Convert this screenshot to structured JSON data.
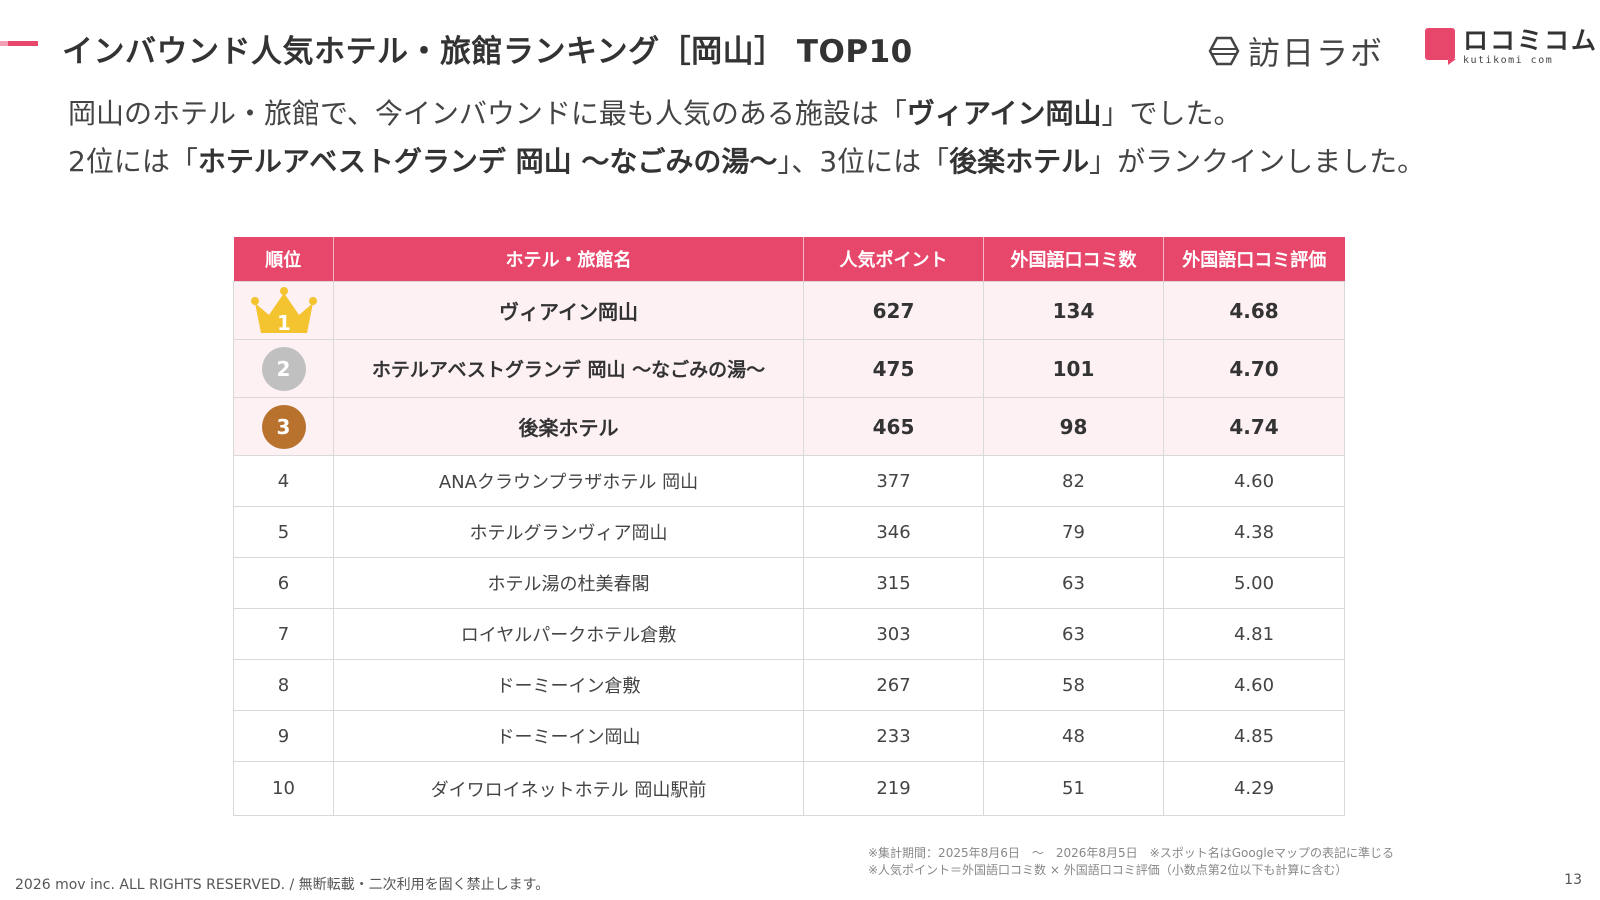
{
  "title": "インバウンド人気ホテル・旅館ランキング［岡山］ TOP10",
  "logos": {
    "houni_labo": "訪日ラボ",
    "kuchikomi": "ロコミコム",
    "kuchikomi_sub": "kutikomi com"
  },
  "intro": {
    "line1_prefix": "岡山のホテル・旅館で、今インバウンドに最も人気のある施設は「",
    "line1_bold": "ヴィアイン岡山",
    "line1_suffix": "」でした。",
    "line2_prefix": "2位には「",
    "line2_bold1": "ホテルアベストグランデ 岡山 ～なごみの湯～",
    "line2_mid": "」、3位には「",
    "line2_bold2": "後楽ホテル",
    "line2_suffix": "」がランクインしました。"
  },
  "table": {
    "headers": [
      "順位",
      "ホテル・旅館名",
      "人気ポイント",
      "外国語口コミ数",
      "外国語口コミ評価"
    ],
    "rows": [
      {
        "rank": "1",
        "name": "ヴィアイン岡山",
        "points": "627",
        "reviews": "134",
        "rating": "4.68"
      },
      {
        "rank": "2",
        "name": "ホテルアベストグランデ 岡山 ～なごみの湯～",
        "points": "475",
        "reviews": "101",
        "rating": "4.70"
      },
      {
        "rank": "3",
        "name": "後楽ホテル",
        "points": "465",
        "reviews": "98",
        "rating": "4.74"
      },
      {
        "rank": "4",
        "name": "ANAクラウンプラザホテル 岡山",
        "points": "377",
        "reviews": "82",
        "rating": "4.60"
      },
      {
        "rank": "5",
        "name": "ホテルグランヴィア岡山",
        "points": "346",
        "reviews": "79",
        "rating": "4.38"
      },
      {
        "rank": "6",
        "name": "ホテル湯の杜美春閣",
        "points": "315",
        "reviews": "63",
        "rating": "5.00"
      },
      {
        "rank": "7",
        "name": "ロイヤルパークホテル倉敷",
        "points": "303",
        "reviews": "63",
        "rating": "4.81"
      },
      {
        "rank": "8",
        "name": "ドーミーイン倉敷",
        "points": "267",
        "reviews": "58",
        "rating": "4.60"
      },
      {
        "rank": "9",
        "name": "ドーミーイン岡山",
        "points": "233",
        "reviews": "48",
        "rating": "4.85"
      },
      {
        "rank": "10",
        "name": "ダイワロイネットホテル 岡山駅前",
        "points": "219",
        "reviews": "51",
        "rating": "4.29"
      }
    ]
  },
  "footnotes": {
    "line1": "※集計期間：2025年8月6日　～　2026年8月5日　※スポット名はGoogleマップの表記に準じる",
    "line2": "※人気ポイント＝外国語口コミ数 × 外国語口コミ評価（小数点第2位以下も計算に含む）"
  },
  "copyright": "2026 mov inc. ALL RIGHTS RESERVED. / 無断転載・二次利用を固く禁止します。",
  "page_number": "13",
  "colors": {
    "accent": "#e8476c",
    "top_row_bg": "#fdf1f4",
    "gold": "#f4c430",
    "silver": "#c0c0c0",
    "bronze": "#b8722e"
  }
}
